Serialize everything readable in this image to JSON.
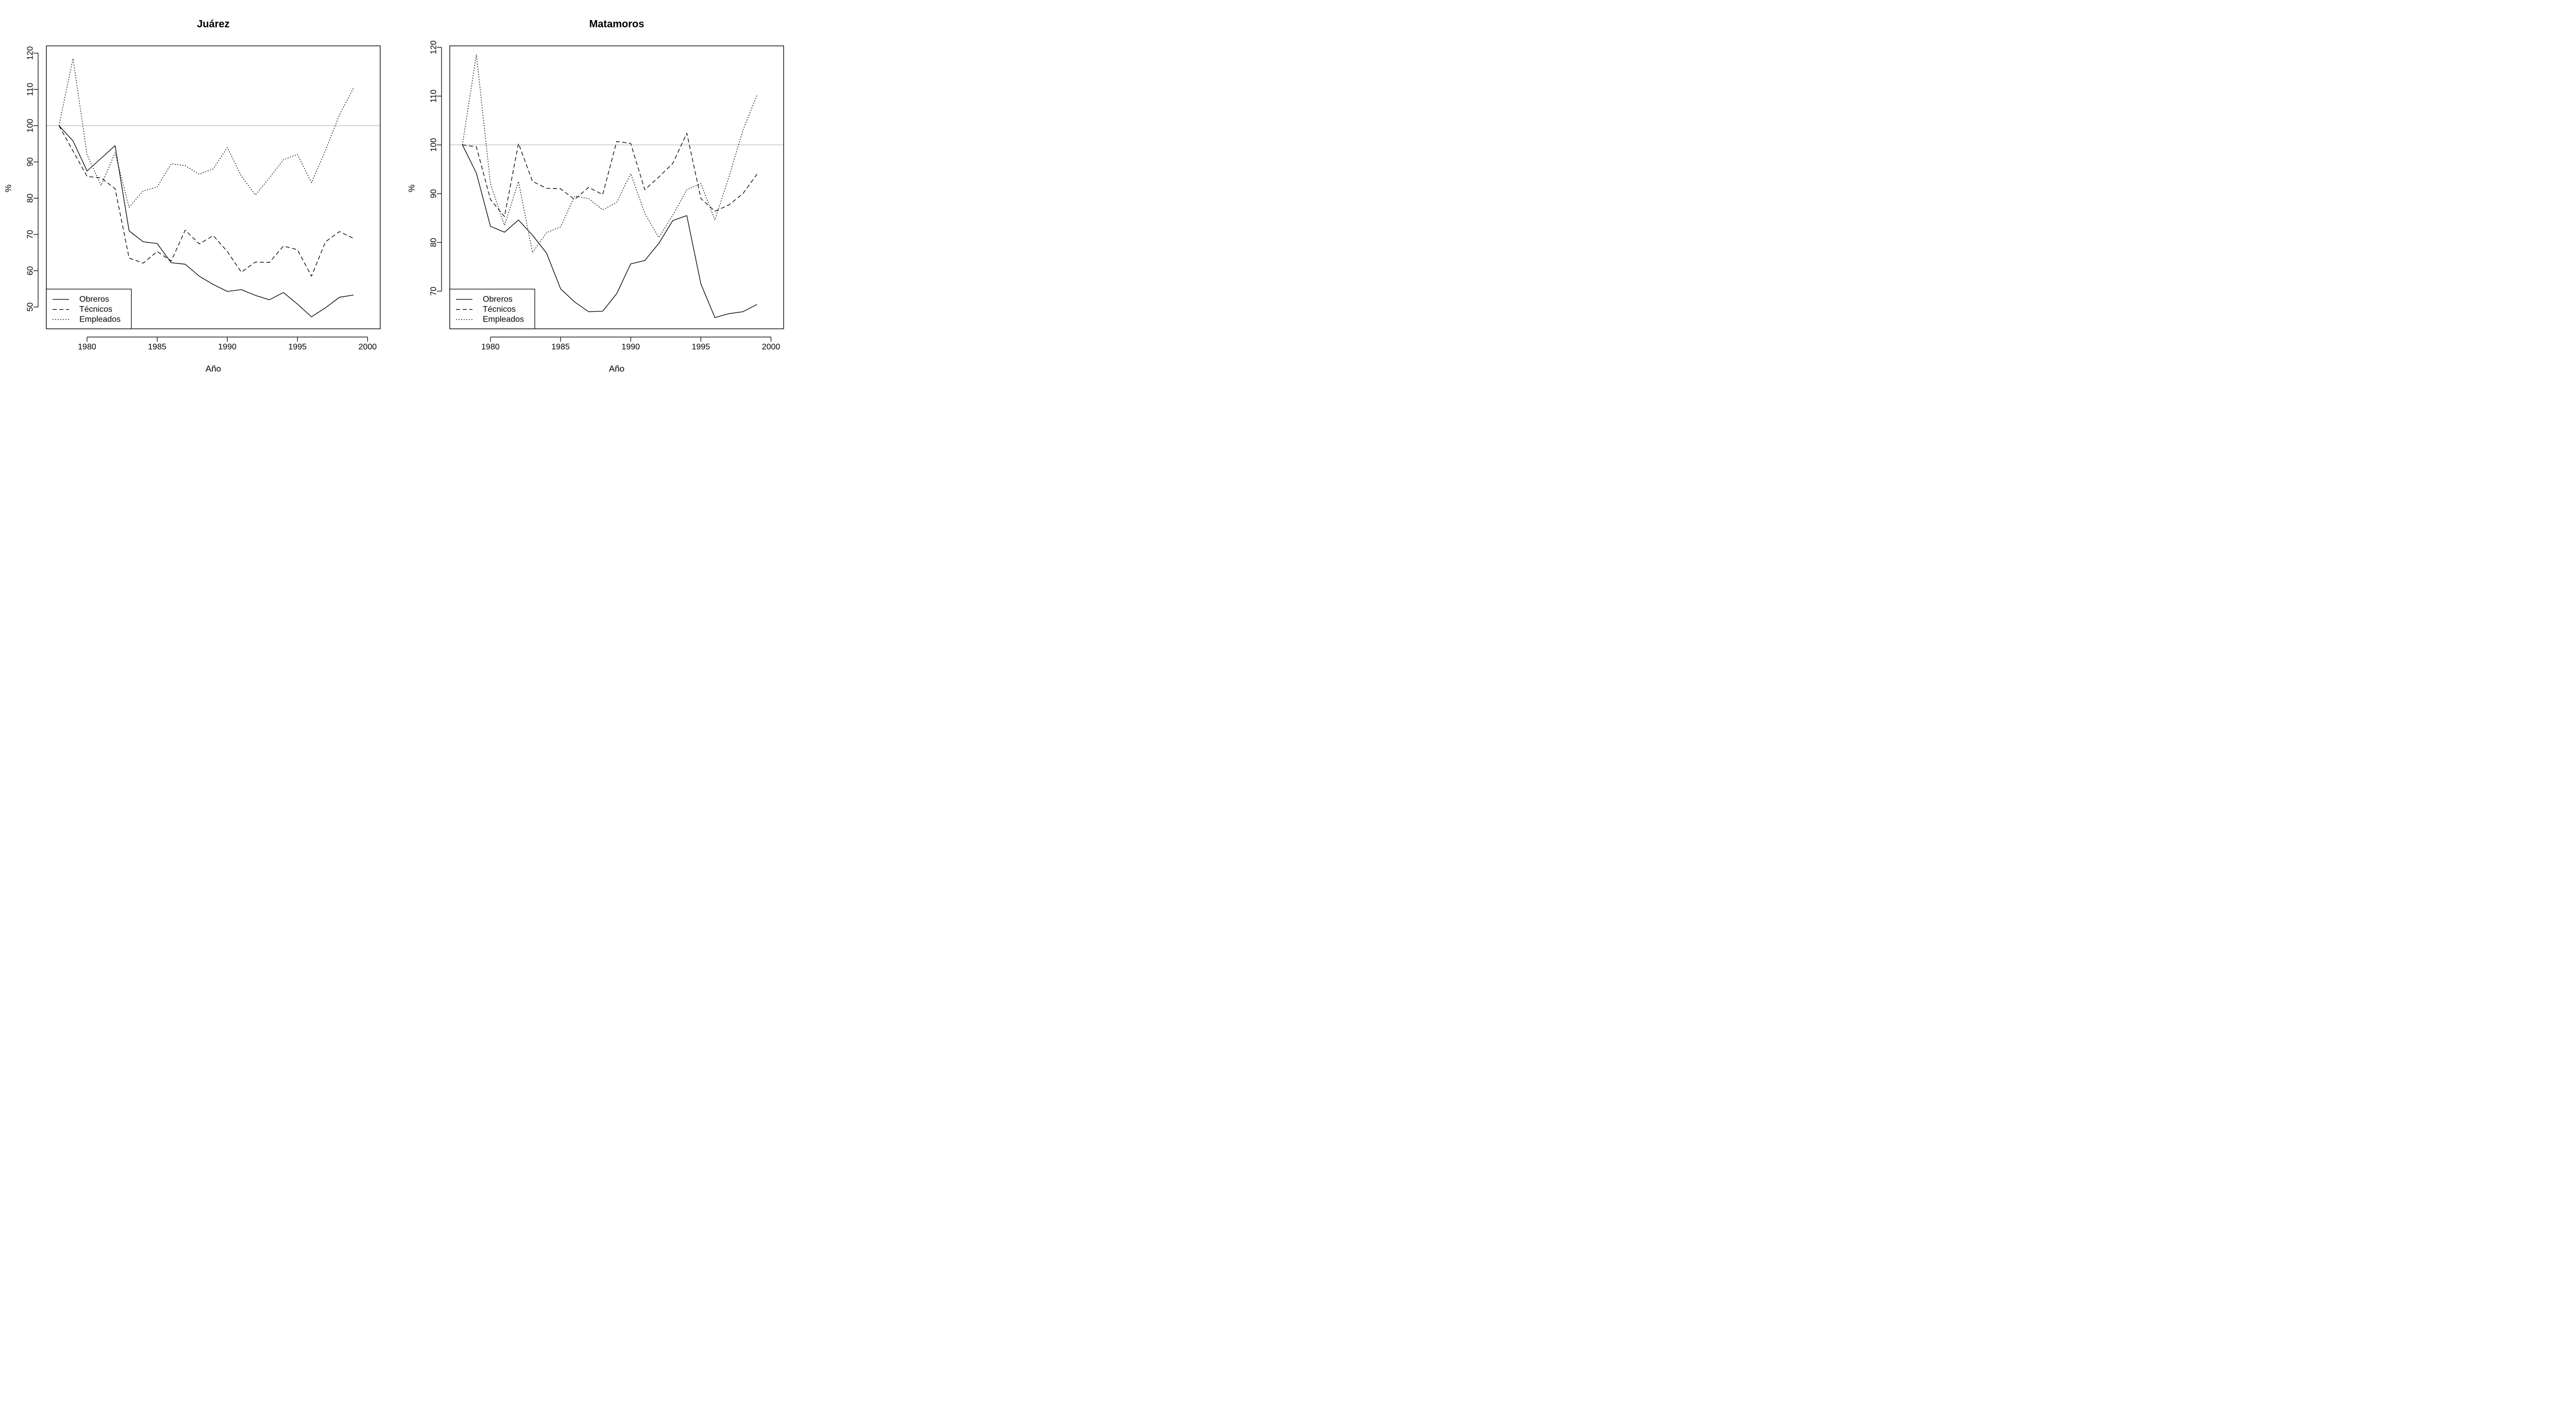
{
  "chart_data": [
    {
      "type": "line",
      "title": "Juárez",
      "xlabel": "Año",
      "ylabel": "%",
      "xlim": [
        1977.1,
        2000.9
      ],
      "ylim": [
        44,
        122
      ],
      "xticks": [
        1980,
        1985,
        1990,
        1995,
        2000
      ],
      "yticks": [
        50,
        60,
        70,
        80,
        90,
        100,
        110,
        120
      ],
      "reference_line": 100,
      "legend_position": "bottom-left",
      "x": [
        1978,
        1979,
        1980,
        1981,
        1982,
        1983,
        1984,
        1985,
        1986,
        1987,
        1988,
        1989,
        1990,
        1991,
        1992,
        1993,
        1994,
        1995,
        1996,
        1997,
        1998,
        1999
      ],
      "series": [
        {
          "name": "Obreros",
          "linestyle": "solid",
          "values": [
            100,
            95.8,
            87.5,
            91,
            94.5,
            71,
            68,
            67.5,
            62.2,
            61.8,
            58.5,
            56.2,
            54.3,
            54.8,
            53.2,
            52,
            54,
            50.8,
            47.3,
            49.8,
            52.7,
            53.3
          ]
        },
        {
          "name": "Técnicos",
          "linestyle": "dashed",
          "values": [
            100,
            93,
            86,
            85.6,
            82.6,
            63.5,
            62.1,
            65.3,
            62.7,
            71.2,
            67.4,
            69.7,
            65.3,
            59.6,
            62.4,
            62.3,
            66.8,
            65.8,
            58.5,
            68,
            70.8,
            68.9
          ]
        },
        {
          "name": "Empleados",
          "linestyle": "dotted",
          "values": [
            100,
            118.5,
            92,
            83.5,
            92.5,
            77.5,
            82,
            83.1,
            89.5,
            89,
            86.6,
            88.1,
            94,
            86.1,
            80.9,
            85.6,
            90.6,
            92.1,
            84.3,
            93.2,
            103,
            110.4
          ]
        }
      ]
    },
    {
      "type": "line",
      "title": "Matamoros",
      "xlabel": "Año",
      "ylabel": "%",
      "xlim": [
        1977.1,
        2000.9
      ],
      "ylim": [
        62.3,
        120.3
      ],
      "xticks": [
        1980,
        1985,
        1990,
        1995,
        2000
      ],
      "yticks": [
        70,
        80,
        90,
        100,
        110,
        120
      ],
      "reference_line": 100,
      "legend_position": "bottom-left",
      "x": [
        1978,
        1979,
        1980,
        1981,
        1982,
        1983,
        1984,
        1985,
        1986,
        1987,
        1988,
        1989,
        1990,
        1991,
        1992,
        1993,
        1994,
        1995,
        1996,
        1997,
        1998,
        1999
      ],
      "series": [
        {
          "name": "Obreros",
          "linestyle": "solid",
          "values": [
            100,
            94.2,
            83.3,
            82.1,
            84.6,
            81.5,
            77.8,
            70.5,
            67.8,
            65.8,
            65.9,
            69.5,
            75.6,
            76.3,
            79.8,
            84.5,
            85.5,
            71.5,
            64.6,
            65.4,
            65.8,
            67.3
          ]
        },
        {
          "name": "Técnicos",
          "linestyle": "dashed",
          "values": [
            100,
            99.6,
            88.8,
            85.3,
            100.3,
            92.5,
            91.1,
            91,
            88.8,
            91.3,
            89.8,
            100.7,
            100.3,
            90.8,
            93.4,
            96.2,
            102.4,
            89,
            86.4,
            87.7,
            90,
            94
          ]
        },
        {
          "name": "Empleados",
          "linestyle": "dotted",
          "values": [
            100,
            118.5,
            92,
            83.5,
            92.5,
            77.9,
            82,
            83.2,
            89.5,
            89,
            86.7,
            88.2,
            94.1,
            86,
            81,
            85.6,
            90.8,
            92.1,
            84.6,
            93.4,
            103,
            110.2
          ]
        }
      ]
    }
  ]
}
